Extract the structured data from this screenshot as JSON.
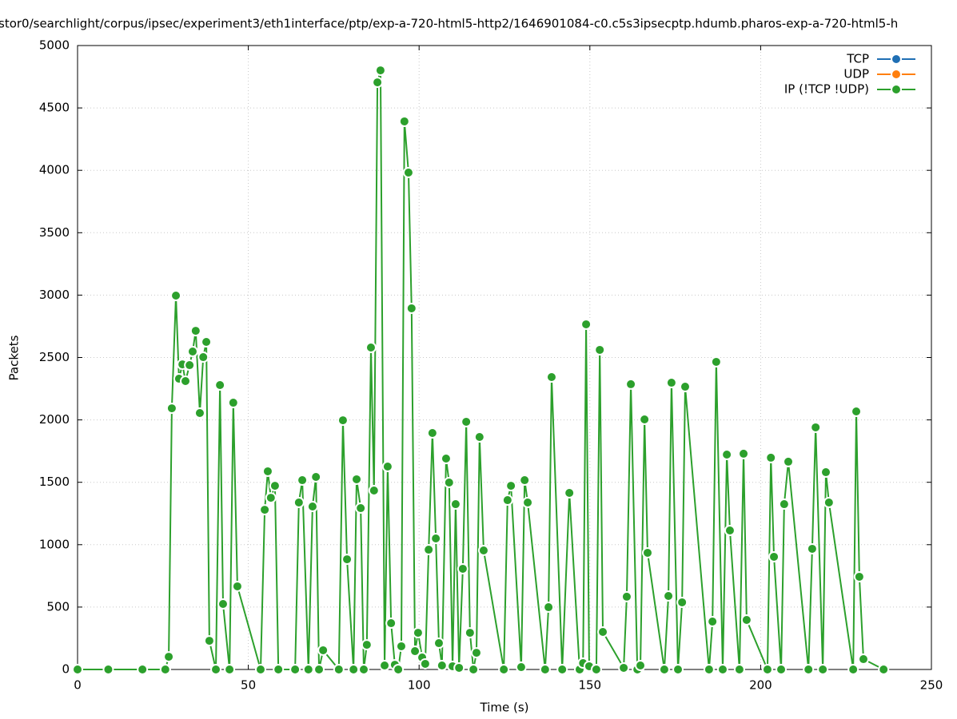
{
  "chart_data": {
    "type": "line",
    "title": "stor0/searchlight/corpus/ipsec/experiment3/eth1interface/ptp/exp-a-720-html5-http2/1646901084-c0.c5s3ipsecptp.hdumb.pharos-exp-a-720-html5-h",
    "x_label": "Time (s)",
    "y_label": "Packets",
    "xlim": [
      0,
      250
    ],
    "xticks": [
      0,
      50,
      100,
      150,
      200,
      250
    ],
    "ylim": [
      0,
      5000
    ],
    "yticks": [
      0,
      500,
      1000,
      1500,
      2000,
      2500,
      3000,
      3500,
      4000,
      4500,
      5000
    ],
    "grid": true,
    "legend": "top-right",
    "series": [
      {
        "name": "TCP",
        "color": "#1f6fb4",
        "x": [
          0,
          9,
          19,
          25.7
        ],
        "values": [
          0,
          0,
          0,
          0
        ]
      },
      {
        "name": "UDP",
        "color": "#ff7f0e",
        "x": [
          0,
          9,
          19,
          25.7
        ],
        "values": [
          0,
          0,
          0,
          0
        ]
      },
      {
        "name": "IP (!TCP  !UDP)",
        "color": "#2ca02c",
        "x": [
          0,
          9,
          19,
          25.7,
          26.7,
          27.6,
          28.8,
          29.7,
          30.7,
          31.6,
          32.8,
          33.7,
          34.6,
          35.8,
          36.8,
          37.7,
          38.6,
          40.5,
          41.7,
          42.6,
          44.5,
          45.6,
          46.8,
          53.6,
          54.8,
          55.7,
          56.6,
          57.8,
          58.8,
          63.7,
          64.8,
          65.8,
          67.6,
          68.8,
          69.8,
          70.7,
          71.9,
          76.5,
          77.7,
          78.9,
          80.8,
          81.7,
          82.9,
          83.8,
          84.7,
          85.9,
          86.8,
          87.8,
          88.7,
          89.9,
          90.8,
          91.8,
          92.9,
          93.9,
          94.8,
          95.7,
          96.9,
          97.8,
          98.8,
          99.7,
          100.9,
          101.8,
          102.8,
          103.9,
          104.9,
          105.8,
          106.7,
          107.9,
          108.8,
          109.8,
          110.7,
          111.7,
          112.8,
          113.8,
          114.9,
          115.9,
          116.8,
          117.7,
          118.9,
          124.8,
          125.9,
          126.9,
          129.9,
          130.9,
          131.8,
          136.9,
          137.9,
          138.8,
          141.9,
          144.0,
          147.0,
          148.0,
          148.9,
          149.8,
          151.9,
          152.9,
          153.8,
          159.9,
          160.8,
          162.0,
          163.9,
          164.8,
          166.0,
          166.9,
          171.8,
          173.0,
          173.9,
          175.8,
          177.0,
          177.9,
          184.9,
          185.9,
          187.0,
          188.9,
          190.1,
          191.0,
          193.8,
          195.0,
          195.9,
          202.0,
          203.0,
          203.9,
          206.0,
          206.9,
          208.1,
          214.0,
          215.1,
          216.1,
          218.2,
          219.1,
          220.0,
          227.1,
          228.0,
          228.9,
          230.1,
          236.0
        ],
        "values": [
          0,
          0,
          0,
          0,
          102,
          2093,
          2996,
          2330,
          2445,
          2311,
          2439,
          2548,
          2714,
          2055,
          2503,
          2625,
          230,
          0,
          2279,
          525,
          0,
          2138,
          666,
          0,
          1280,
          1588,
          1376,
          1472,
          0,
          0,
          1338,
          1517,
          0,
          1306,
          1543,
          0,
          154,
          0,
          1997,
          883,
          0,
          1524,
          1293,
          0,
          198,
          2580,
          1434,
          4705,
          4801,
          32,
          1626,
          371,
          38,
          0,
          186,
          4392,
          3982,
          2894,
          147,
          294,
          96,
          45,
          960,
          1895,
          1050,
          211,
          32,
          1690,
          1498,
          26,
          1325,
          13,
          807,
          1985,
          294,
          0,
          134,
          1863,
          954,
          0,
          1357,
          1472,
          19,
          1517,
          1338,
          0,
          499,
          2343,
          0,
          1415,
          0,
          51,
          2766,
          26,
          0,
          2561,
          301,
          13,
          583,
          2286,
          0,
          32,
          2004,
          935,
          0,
          589,
          2298,
          0,
          538,
          2266,
          0,
          384,
          2465,
          0,
          1722,
          1114,
          0,
          1729,
          397,
          0,
          1697,
          903,
          0,
          1325,
          1665,
          0,
          967,
          1940,
          0,
          1581,
          1338,
          0,
          2068,
          743,
          83,
          0
        ]
      }
    ]
  }
}
